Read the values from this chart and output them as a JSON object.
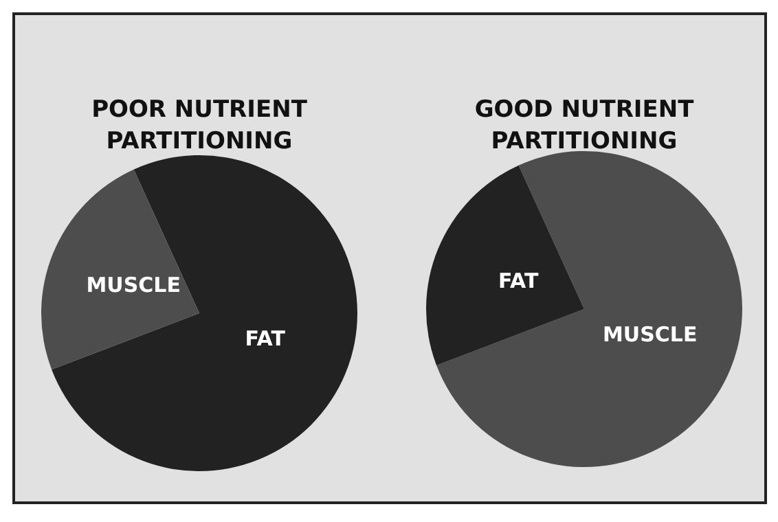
{
  "chart_data": [
    {
      "type": "pie",
      "title": "POOR NUTRIENT PARTITIONING",
      "categories": [
        "FAT",
        "MUSCLE"
      ],
      "values": [
        76,
        24
      ],
      "colors": [
        "#222222",
        "#4d4d4d"
      ]
    },
    {
      "type": "pie",
      "title": "GOOD NUTRIENT PARTITIONING",
      "categories": [
        "MUSCLE",
        "FAT"
      ],
      "values": [
        76,
        24
      ],
      "colors": [
        "#4d4d4d",
        "#222222"
      ]
    }
  ]
}
